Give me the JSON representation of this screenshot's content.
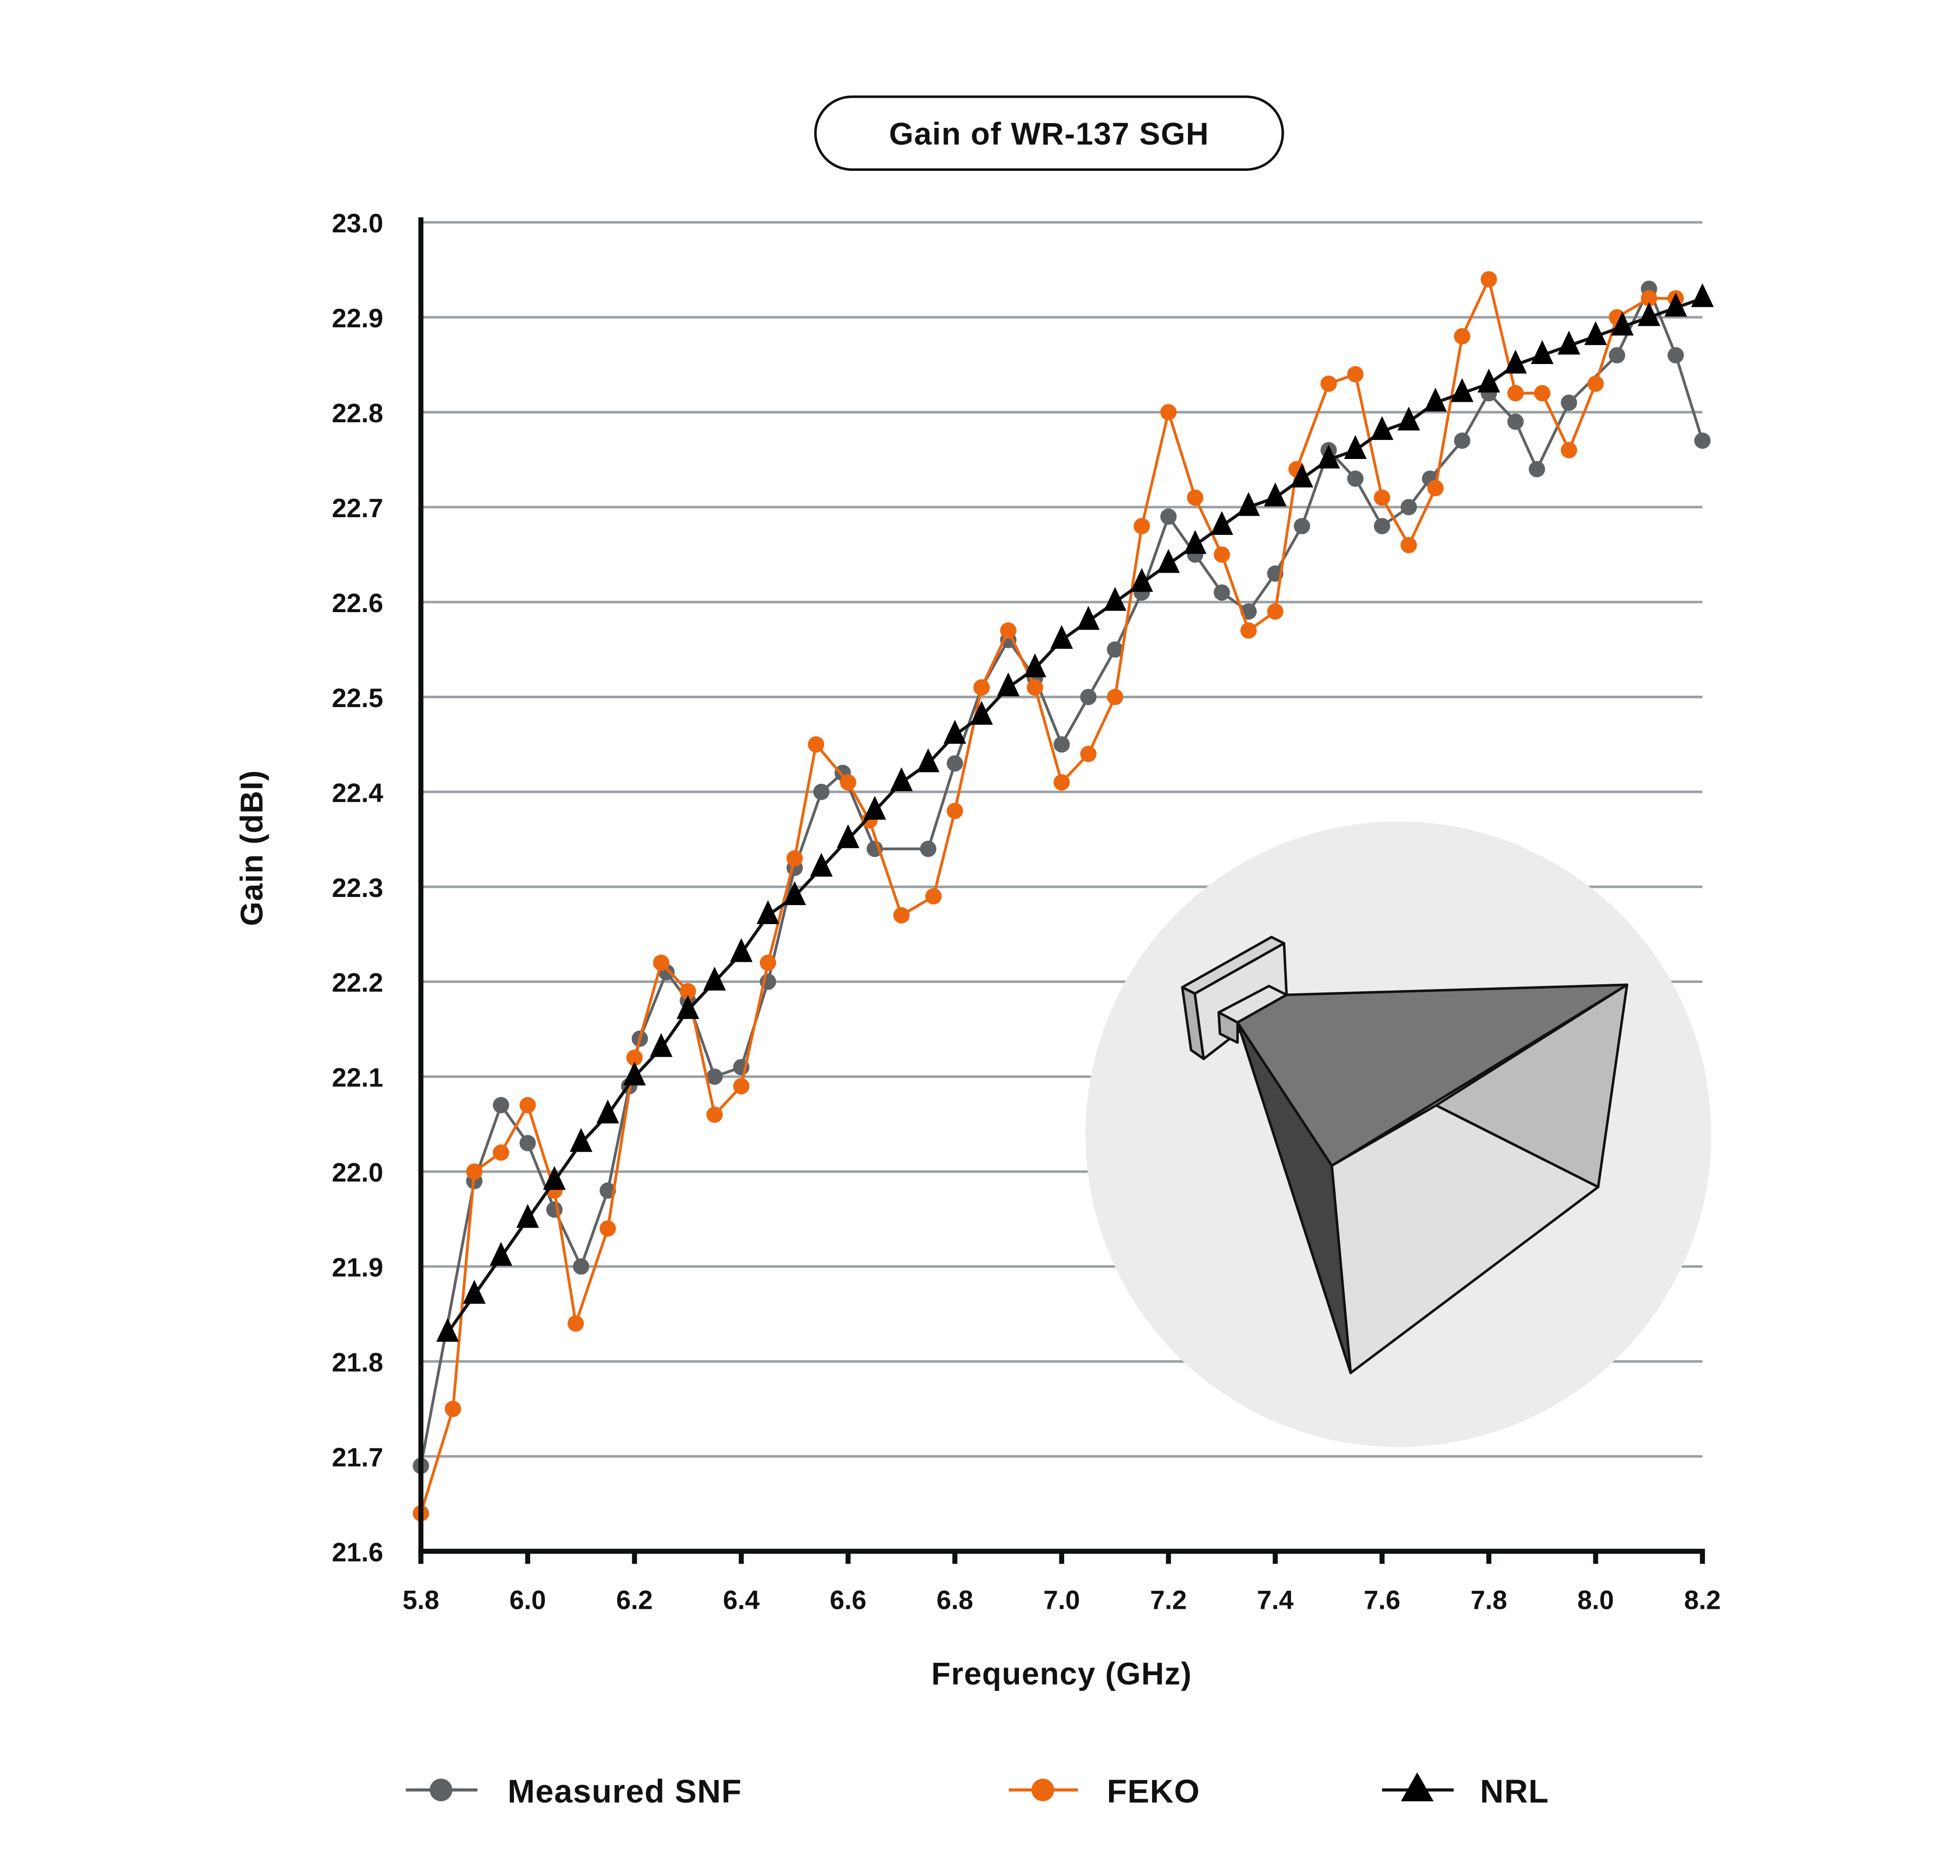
{
  "chart_data": {
    "type": "line",
    "title": "Gain of WR-137 SGH",
    "xlabel": "Frequency (GHz)",
    "ylabel": "Gain (dBI)",
    "xlim": [
      5.8,
      8.2
    ],
    "ylim": [
      21.6,
      23.0
    ],
    "xticks": [
      "5.8",
      "6.0",
      "6.2",
      "6.4",
      "6.6",
      "6.8",
      "7.0",
      "7.2",
      "7.4",
      "7.6",
      "7.8",
      "8.0",
      "8.2"
    ],
    "yticks": [
      "23.0",
      "22.9",
      "22.8",
      "22.7",
      "22.6",
      "22.5",
      "22.4",
      "22.3",
      "22.2",
      "22.1",
      "22.0",
      "21.9",
      "21.8",
      "21.7",
      "21.6"
    ],
    "grid": "horizontal",
    "legend_position": "bottom",
    "series": [
      {
        "name": "Measured SNF",
        "color": "#5f6265",
        "marker": "circle",
        "points": [
          [
            5.8,
            21.69
          ],
          [
            5.9,
            21.99
          ],
          [
            5.95,
            22.07
          ],
          [
            6.0,
            22.03
          ],
          [
            6.05,
            21.96
          ],
          [
            6.1,
            21.9
          ],
          [
            6.15,
            21.98
          ],
          [
            6.19,
            22.09
          ],
          [
            6.21,
            22.14
          ],
          [
            6.26,
            22.21
          ],
          [
            6.3,
            22.18
          ],
          [
            6.35,
            22.1
          ],
          [
            6.4,
            22.11
          ],
          [
            6.45,
            22.2
          ],
          [
            6.5,
            22.32
          ],
          [
            6.55,
            22.4
          ],
          [
            6.59,
            22.42
          ],
          [
            6.65,
            22.34
          ],
          [
            6.75,
            22.34
          ],
          [
            6.8,
            22.43
          ],
          [
            6.85,
            22.51
          ],
          [
            6.9,
            22.56
          ],
          [
            6.95,
            22.52
          ],
          [
            7.0,
            22.45
          ],
          [
            7.05,
            22.5
          ],
          [
            7.1,
            22.55
          ],
          [
            7.15,
            22.61
          ],
          [
            7.2,
            22.69
          ],
          [
            7.25,
            22.65
          ],
          [
            7.3,
            22.61
          ],
          [
            7.35,
            22.59
          ],
          [
            7.4,
            22.63
          ],
          [
            7.45,
            22.68
          ],
          [
            7.5,
            22.76
          ],
          [
            7.55,
            22.73
          ],
          [
            7.6,
            22.68
          ],
          [
            7.65,
            22.7
          ],
          [
            7.69,
            22.73
          ],
          [
            7.75,
            22.77
          ],
          [
            7.8,
            22.82
          ],
          [
            7.85,
            22.79
          ],
          [
            7.89,
            22.74
          ],
          [
            7.95,
            22.81
          ],
          [
            8.04,
            22.86
          ],
          [
            8.1,
            22.93
          ],
          [
            8.15,
            22.86
          ],
          [
            8.2,
            22.77
          ]
        ]
      },
      {
        "name": "FEKO",
        "color": "#ec670d",
        "marker": "circle",
        "points": [
          [
            5.8,
            21.64
          ],
          [
            5.86,
            21.75
          ],
          [
            5.9,
            22.0
          ],
          [
            5.95,
            22.02
          ],
          [
            6.0,
            22.07
          ],
          [
            6.05,
            21.98
          ],
          [
            6.09,
            21.84
          ],
          [
            6.15,
            21.94
          ],
          [
            6.2,
            22.12
          ],
          [
            6.25,
            22.22
          ],
          [
            6.3,
            22.19
          ],
          [
            6.35,
            22.06
          ],
          [
            6.4,
            22.09
          ],
          [
            6.45,
            22.22
          ],
          [
            6.5,
            22.33
          ],
          [
            6.54,
            22.45
          ],
          [
            6.6,
            22.41
          ],
          [
            6.64,
            22.37
          ],
          [
            6.7,
            22.27
          ],
          [
            6.76,
            22.29
          ],
          [
            6.8,
            22.38
          ],
          [
            6.85,
            22.51
          ],
          [
            6.9,
            22.57
          ],
          [
            6.95,
            22.51
          ],
          [
            7.0,
            22.41
          ],
          [
            7.05,
            22.44
          ],
          [
            7.1,
            22.5
          ],
          [
            7.15,
            22.68
          ],
          [
            7.2,
            22.8
          ],
          [
            7.25,
            22.71
          ],
          [
            7.3,
            22.65
          ],
          [
            7.35,
            22.57
          ],
          [
            7.4,
            22.59
          ],
          [
            7.44,
            22.74
          ],
          [
            7.5,
            22.83
          ],
          [
            7.55,
            22.84
          ],
          [
            7.6,
            22.71
          ],
          [
            7.65,
            22.66
          ],
          [
            7.7,
            22.72
          ],
          [
            7.75,
            22.88
          ],
          [
            7.8,
            22.94
          ],
          [
            7.85,
            22.82
          ],
          [
            7.9,
            22.82
          ],
          [
            7.95,
            22.76
          ],
          [
            8.0,
            22.83
          ],
          [
            8.04,
            22.9
          ],
          [
            8.1,
            22.92
          ],
          [
            8.15,
            22.92
          ]
        ]
      },
      {
        "name": "NRL",
        "color": "#111111",
        "marker": "triangle",
        "points": [
          [
            5.85,
            21.83
          ],
          [
            5.9,
            21.87
          ],
          [
            5.95,
            21.91
          ],
          [
            6.0,
            21.95
          ],
          [
            6.05,
            21.99
          ],
          [
            6.1,
            22.03
          ],
          [
            6.15,
            22.06
          ],
          [
            6.2,
            22.1
          ],
          [
            6.25,
            22.13
          ],
          [
            6.3,
            22.17
          ],
          [
            6.35,
            22.2
          ],
          [
            6.4,
            22.23
          ],
          [
            6.45,
            22.27
          ],
          [
            6.5,
            22.29
          ],
          [
            6.55,
            22.32
          ],
          [
            6.6,
            22.35
          ],
          [
            6.65,
            22.38
          ],
          [
            6.7,
            22.41
          ],
          [
            6.75,
            22.43
          ],
          [
            6.8,
            22.46
          ],
          [
            6.85,
            22.48
          ],
          [
            6.9,
            22.51
          ],
          [
            6.95,
            22.53
          ],
          [
            7.0,
            22.56
          ],
          [
            7.05,
            22.58
          ],
          [
            7.1,
            22.6
          ],
          [
            7.15,
            22.62
          ],
          [
            7.2,
            22.64
          ],
          [
            7.25,
            22.66
          ],
          [
            7.3,
            22.68
          ],
          [
            7.35,
            22.7
          ],
          [
            7.4,
            22.71
          ],
          [
            7.45,
            22.73
          ],
          [
            7.5,
            22.75
          ],
          [
            7.55,
            22.76
          ],
          [
            7.6,
            22.78
          ],
          [
            7.65,
            22.79
          ],
          [
            7.7,
            22.81
          ],
          [
            7.75,
            22.82
          ],
          [
            7.8,
            22.83
          ],
          [
            7.85,
            22.85
          ],
          [
            7.9,
            22.86
          ],
          [
            7.95,
            22.87
          ],
          [
            8.0,
            22.88
          ],
          [
            8.05,
            22.89
          ],
          [
            8.1,
            22.9
          ],
          [
            8.15,
            22.91
          ],
          [
            8.2,
            22.92
          ]
        ]
      }
    ]
  }
}
